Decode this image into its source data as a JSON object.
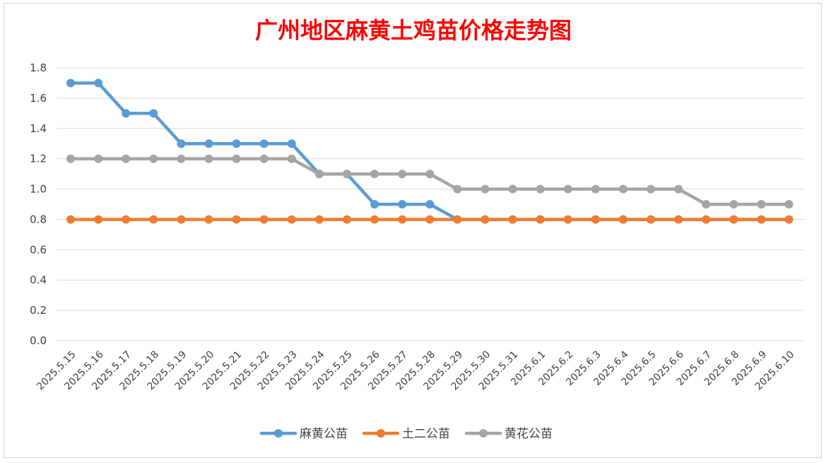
{
  "chart_data": {
    "type": "line",
    "title": "广州地区麻黄土鸡苗价格走势图",
    "title_color": "#ff0000",
    "xlabel": "",
    "ylabel": "",
    "ylim": [
      0,
      1.8
    ],
    "ytick_step": 0.2,
    "y_tick_labels": [
      "0.0",
      "0.2",
      "0.4",
      "0.6",
      "0.8",
      "1.0",
      "1.2",
      "1.4",
      "1.6",
      "1.8"
    ],
    "grid": true,
    "legend_position": "bottom",
    "x": [
      "2025.5.15",
      "2025.5.16",
      "2025.5.17",
      "2025.5.18",
      "2025.5.19",
      "2025.5.20",
      "2025.5.21",
      "2025.5.22",
      "2025.5.23",
      "2025.5.24",
      "2025.5.25",
      "2025.5.26",
      "2025.5.27",
      "2025.5.28",
      "2025.5.29",
      "2025.5.30",
      "2025.5.31",
      "2025.6.1",
      "2025.6.2",
      "2025.6.3",
      "2025.6.4",
      "2025.6.5",
      "2025.6.6",
      "2025.6.7",
      "2025.6.8",
      "2025.6.9",
      "2025.6.10"
    ],
    "series": [
      {
        "name": "麻黄公苗",
        "color": "#5b9bd5",
        "values": [
          1.7,
          1.7,
          1.5,
          1.5,
          1.3,
          1.3,
          1.3,
          1.3,
          1.3,
          1.1,
          1.1,
          0.9,
          0.9,
          0.9,
          0.8,
          0.8,
          0.8,
          0.8,
          0.8,
          0.8,
          0.8,
          0.8,
          0.8,
          0.8,
          0.8,
          0.8,
          0.8
        ]
      },
      {
        "name": "土二公苗",
        "color": "#ed7d31",
        "values": [
          0.8,
          0.8,
          0.8,
          0.8,
          0.8,
          0.8,
          0.8,
          0.8,
          0.8,
          0.8,
          0.8,
          0.8,
          0.8,
          0.8,
          0.8,
          0.8,
          0.8,
          0.8,
          0.8,
          0.8,
          0.8,
          0.8,
          0.8,
          0.8,
          0.8,
          0.8,
          0.8
        ]
      },
      {
        "name": "黄花公苗",
        "color": "#a5a5a5",
        "values": [
          1.2,
          1.2,
          1.2,
          1.2,
          1.2,
          1.2,
          1.2,
          1.2,
          1.2,
          1.1,
          1.1,
          1.1,
          1.1,
          1.1,
          1.0,
          1.0,
          1.0,
          1.0,
          1.0,
          1.0,
          1.0,
          1.0,
          1.0,
          0.9,
          0.9,
          0.9,
          0.9
        ]
      }
    ]
  }
}
